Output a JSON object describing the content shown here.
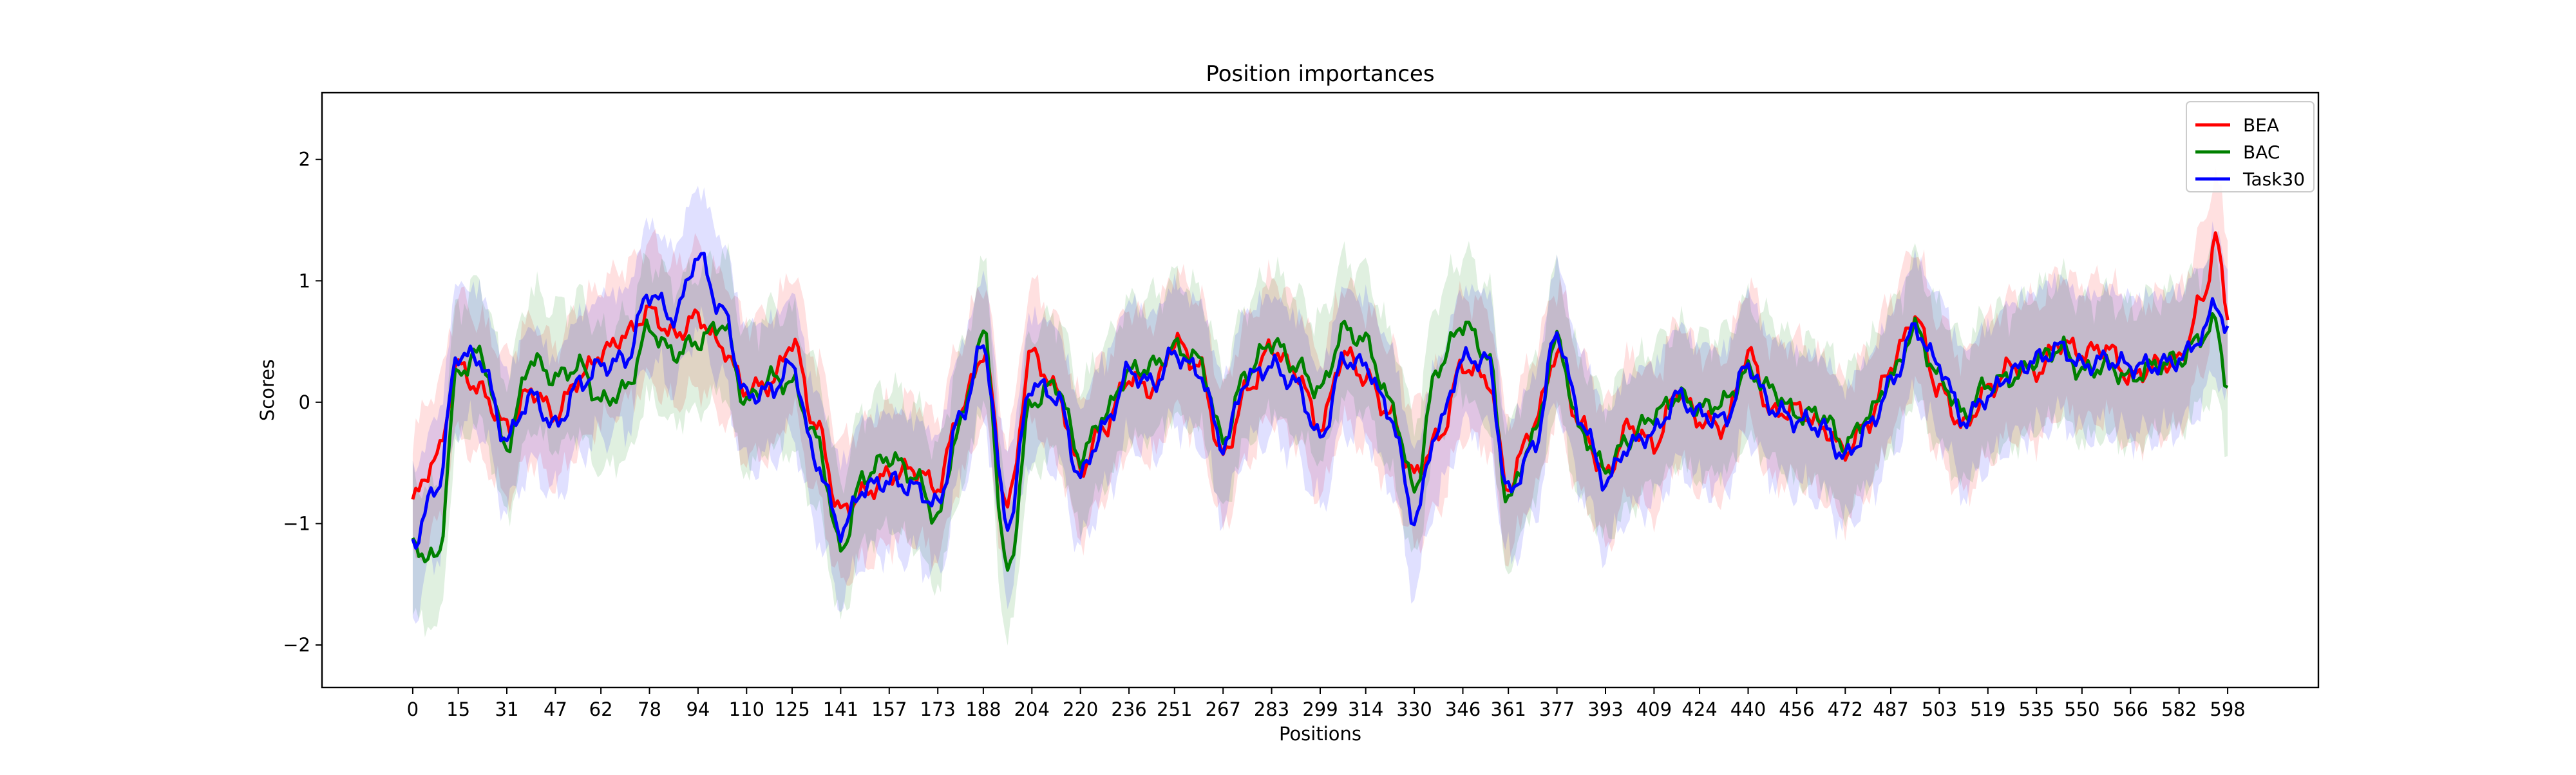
{
  "chart_data": {
    "type": "line",
    "title": "Position importances",
    "xlabel": "Positions",
    "ylabel": "Scores",
    "xlim": [
      -29.9,
      627.9
    ],
    "ylim": [
      -2.35,
      2.55
    ],
    "x_ticks": [
      0,
      15,
      31,
      47,
      62,
      78,
      94,
      110,
      125,
      141,
      157,
      173,
      188,
      204,
      220,
      236,
      251,
      267,
      283,
      299,
      314,
      330,
      346,
      361,
      377,
      393,
      409,
      424,
      440,
      456,
      472,
      487,
      503,
      519,
      535,
      550,
      566,
      582,
      598
    ],
    "y_ticks": [
      -2,
      -1,
      0,
      1,
      2
    ],
    "grid": false,
    "legend_position": "top-right",
    "band": "shaded spread around each line",
    "series": [
      {
        "name": "BEA",
        "color": "#ff0000",
        "x": [
          0,
          8,
          15,
          22,
          31,
          39,
          47,
          55,
          62,
          70,
          78,
          86,
          94,
          102,
          110,
          118,
          125,
          133,
          141,
          149,
          157,
          165,
          173,
          180,
          188,
          196,
          204,
          212,
          220,
          228,
          236,
          244,
          251,
          259,
          267,
          275,
          283,
          291,
          299,
          307,
          314,
          322,
          330,
          338,
          346,
          354,
          361,
          369,
          377,
          385,
          393,
          401,
          409,
          417,
          424,
          432,
          440,
          448,
          456,
          464,
          472,
          480,
          487,
          495,
          503,
          511,
          519,
          527,
          535,
          543,
          550,
          558,
          566,
          574,
          582,
          590,
          594,
          598
        ],
        "y": [
          -0.8,
          -0.45,
          0.3,
          0.1,
          -0.2,
          0.1,
          -0.1,
          0.2,
          0.4,
          0.55,
          0.75,
          0.55,
          0.7,
          0.45,
          0.1,
          0.15,
          0.5,
          -0.2,
          -0.9,
          -0.75,
          -0.6,
          -0.55,
          -0.7,
          -0.1,
          0.4,
          -0.85,
          0.4,
          0.1,
          -0.55,
          -0.2,
          0.2,
          0.1,
          0.5,
          0.3,
          -0.45,
          0.1,
          0.45,
          0.25,
          -0.2,
          0.4,
          0.2,
          -0.1,
          -0.6,
          -0.3,
          0.3,
          0.2,
          -0.7,
          -0.2,
          0.4,
          -0.2,
          -0.6,
          -0.2,
          -0.35,
          0.1,
          -0.15,
          -0.2,
          0.4,
          -0.1,
          -0.05,
          -0.2,
          -0.4,
          -0.15,
          0.3,
          0.7,
          0.1,
          -0.2,
          0.1,
          0.3,
          0.25,
          0.5,
          0.4,
          0.45,
          0.2,
          0.3,
          0.35,
          0.85,
          1.35,
          0.75
        ]
      },
      {
        "name": "BAC",
        "color": "#008000",
        "x": [
          0,
          8,
          15,
          22,
          31,
          39,
          47,
          55,
          62,
          70,
          78,
          86,
          94,
          102,
          110,
          118,
          125,
          133,
          141,
          149,
          157,
          165,
          173,
          180,
          188,
          196,
          204,
          212,
          220,
          228,
          236,
          244,
          251,
          259,
          267,
          275,
          283,
          291,
          299,
          307,
          314,
          322,
          330,
          338,
          346,
          354,
          361,
          369,
          377,
          385,
          393,
          401,
          409,
          417,
          424,
          432,
          440,
          448,
          456,
          464,
          472,
          480,
          487,
          495,
          503,
          511,
          519,
          527,
          535,
          543,
          550,
          558,
          566,
          574,
          582,
          590,
          594,
          598
        ],
        "y": [
          -1.2,
          -1.3,
          0.25,
          0.4,
          -0.35,
          0.35,
          0.2,
          0.3,
          0.0,
          0.1,
          0.6,
          0.4,
          0.5,
          0.65,
          0.0,
          0.2,
          0.15,
          -0.3,
          -1.2,
          -0.6,
          -0.45,
          -0.6,
          -0.95,
          -0.2,
          0.55,
          -1.4,
          0.0,
          0.15,
          -0.45,
          -0.1,
          0.25,
          0.3,
          0.45,
          0.35,
          -0.3,
          0.25,
          0.5,
          0.3,
          0.1,
          0.6,
          0.5,
          0.0,
          -0.7,
          0.3,
          0.65,
          0.4,
          -0.8,
          -0.3,
          0.5,
          -0.25,
          -0.55,
          -0.3,
          -0.1,
          0.05,
          -0.05,
          0.0,
          0.25,
          0.1,
          -0.1,
          -0.1,
          -0.35,
          -0.1,
          0.2,
          0.6,
          0.2,
          -0.1,
          0.15,
          0.2,
          0.35,
          0.45,
          0.25,
          0.3,
          0.2,
          0.3,
          0.35,
          0.55,
          0.65,
          0.15
        ]
      },
      {
        "name": "Task30",
        "color": "#0000ff",
        "x": [
          0,
          8,
          15,
          22,
          31,
          39,
          47,
          55,
          62,
          70,
          78,
          86,
          94,
          102,
          110,
          118,
          125,
          133,
          141,
          149,
          157,
          165,
          173,
          180,
          188,
          196,
          204,
          212,
          220,
          228,
          236,
          244,
          251,
          259,
          267,
          275,
          283,
          291,
          299,
          307,
          314,
          322,
          330,
          338,
          346,
          354,
          361,
          369,
          377,
          385,
          393,
          401,
          409,
          417,
          424,
          432,
          440,
          448,
          456,
          464,
          472,
          480,
          487,
          495,
          503,
          511,
          519,
          527,
          535,
          543,
          550,
          558,
          566,
          574,
          582,
          590,
          594,
          598
        ],
        "y": [
          -1.15,
          -0.7,
          0.4,
          0.35,
          -0.3,
          0.05,
          -0.2,
          0.15,
          0.3,
          0.35,
          0.9,
          0.7,
          1.2,
          0.75,
          0.05,
          0.1,
          0.3,
          -0.5,
          -1.05,
          -0.7,
          -0.65,
          -0.7,
          -0.85,
          -0.15,
          0.45,
          -1.0,
          0.15,
          0.05,
          -0.6,
          -0.2,
          0.25,
          0.15,
          0.4,
          0.25,
          -0.35,
          0.2,
          0.3,
          0.15,
          -0.3,
          0.35,
          0.3,
          -0.1,
          -0.95,
          -0.2,
          0.35,
          0.35,
          -0.75,
          -0.4,
          0.55,
          -0.15,
          -0.65,
          -0.35,
          -0.25,
          0.05,
          -0.1,
          -0.15,
          0.3,
          -0.05,
          -0.15,
          -0.2,
          -0.45,
          -0.2,
          0.15,
          0.6,
          0.3,
          -0.15,
          0.05,
          0.25,
          0.35,
          0.45,
          0.3,
          0.35,
          0.3,
          0.3,
          0.35,
          0.55,
          0.85,
          0.55
        ]
      }
    ]
  }
}
